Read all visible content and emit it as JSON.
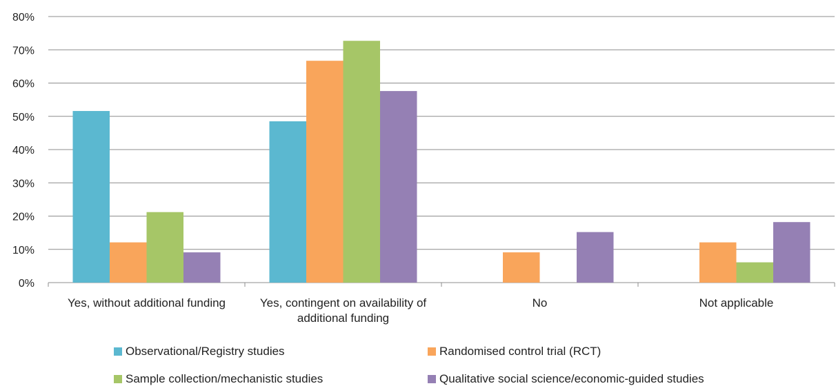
{
  "chart_data": {
    "type": "bar",
    "categories": [
      [
        "Yes, without additional funding"
      ],
      [
        "Yes, contingent on availability of",
        "additional funding"
      ],
      [
        "No"
      ],
      [
        "Not applicable"
      ]
    ],
    "ylim": [
      0,
      80
    ],
    "yticks": [
      "0%",
      "10%",
      "20%",
      "30%",
      "40%",
      "50%",
      "60%",
      "70%",
      "80%"
    ],
    "grid": true,
    "legend_position": "bottom",
    "series": [
      {
        "name": "Observational/Registry studies",
        "color": "#5bb8d0",
        "values": [
          51.6,
          48.5,
          0,
          0
        ]
      },
      {
        "name": "Randomised control trial (RCT)",
        "color": "#f9a55b",
        "values": [
          12.1,
          66.7,
          9.1,
          12.1
        ]
      },
      {
        "name": "Sample collection/mechanistic studies",
        "color": "#a6c667",
        "values": [
          21.2,
          72.7,
          0,
          6.1
        ]
      },
      {
        "name": "Qualitative social science/economic-guided studies",
        "color": "#9580b4",
        "values": [
          9.1,
          57.6,
          15.2,
          18.2
        ]
      }
    ]
  }
}
